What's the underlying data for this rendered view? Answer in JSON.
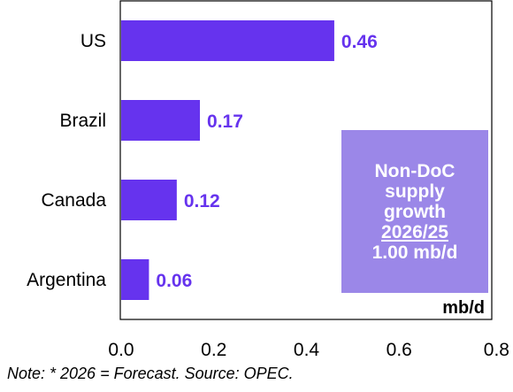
{
  "chart_data": {
    "type": "bar",
    "orientation": "horizontal",
    "categories": [
      "US",
      "Brazil",
      "Canada",
      "Argentina"
    ],
    "values": [
      0.46,
      0.17,
      0.12,
      0.06
    ],
    "data_labels": [
      "0.46",
      "0.17",
      "0.12",
      "0.06"
    ],
    "xlim": [
      0.0,
      0.8
    ],
    "x_ticks": [
      "0.0",
      "0.2",
      "0.4",
      "0.6",
      "0.8"
    ],
    "x_tick_values": [
      0.0,
      0.2,
      0.4,
      0.6,
      0.8
    ],
    "unit_label": "mb/d",
    "grid": false,
    "colors": {
      "bar": "#6633ee",
      "label": "#6633ee",
      "callout_bg": "#9b87e8"
    },
    "callout": {
      "line1": "Non-DoC",
      "line2": "supply",
      "line3": "growth",
      "line4": "2026/25",
      "line5": "1.00 mb/d"
    }
  },
  "note": "Note: * 2026 = Forecast. Source: OPEC."
}
